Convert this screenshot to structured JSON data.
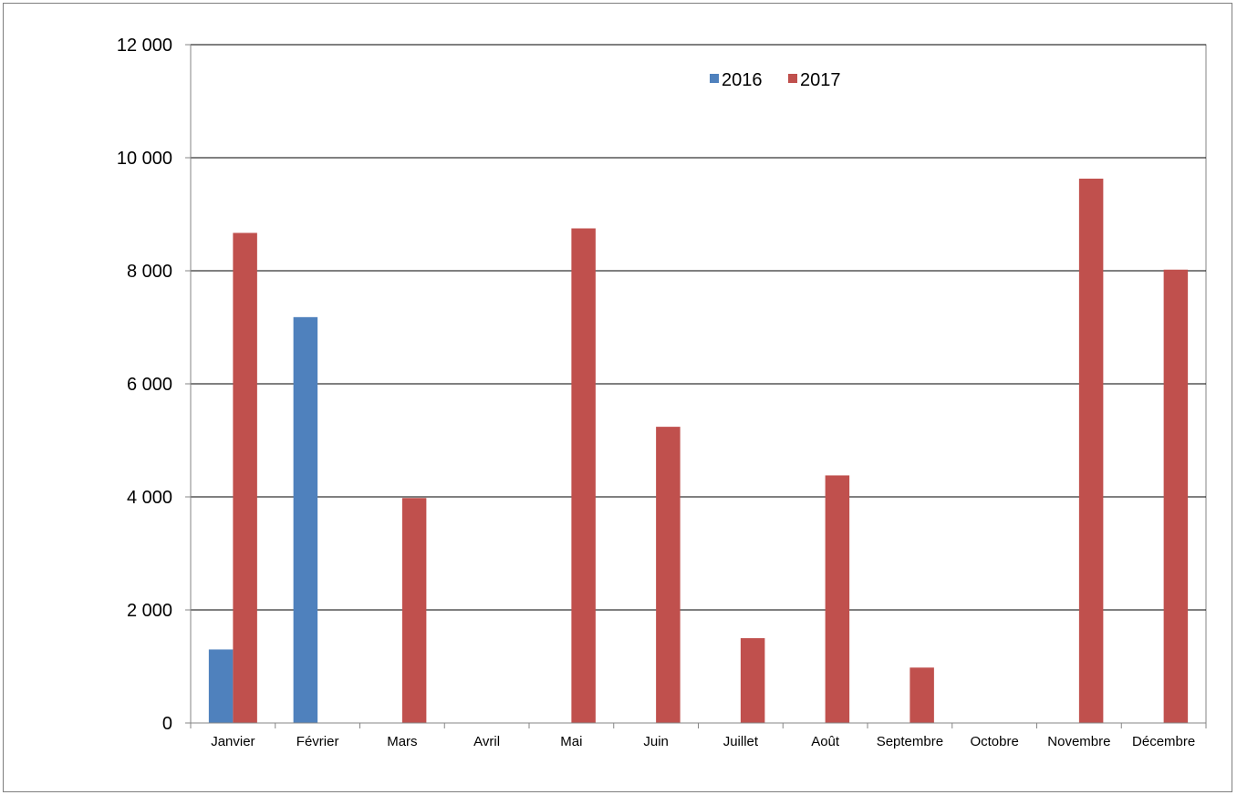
{
  "chart_data": {
    "type": "bar",
    "categories": [
      "Janvier",
      "Février",
      "Mars",
      "Avril",
      "Mai",
      "Juin",
      "Juillet",
      "Août",
      "Septembre",
      "Octobre",
      "Novembre",
      "Décembre"
    ],
    "series": [
      {
        "name": "2016",
        "color": "#4f81bd",
        "values": [
          1300,
          7180,
          0,
          0,
          0,
          0,
          0,
          0,
          0,
          0,
          0,
          0
        ]
      },
      {
        "name": "2017",
        "color": "#c0504d",
        "values": [
          8670,
          0,
          3980,
          0,
          8750,
          5240,
          1500,
          4380,
          980,
          0,
          9630,
          8020
        ]
      }
    ],
    "ylim": [
      0,
      12000
    ],
    "yticks": [
      0,
      2000,
      4000,
      6000,
      8000,
      10000,
      12000
    ],
    "ytick_labels": [
      "0",
      "2 000",
      "4 000",
      "6 000",
      "8 000",
      "10 000",
      "12 000"
    ],
    "grid": true,
    "legend_position": "top-center",
    "title": "",
    "xlabel": "",
    "ylabel": ""
  }
}
